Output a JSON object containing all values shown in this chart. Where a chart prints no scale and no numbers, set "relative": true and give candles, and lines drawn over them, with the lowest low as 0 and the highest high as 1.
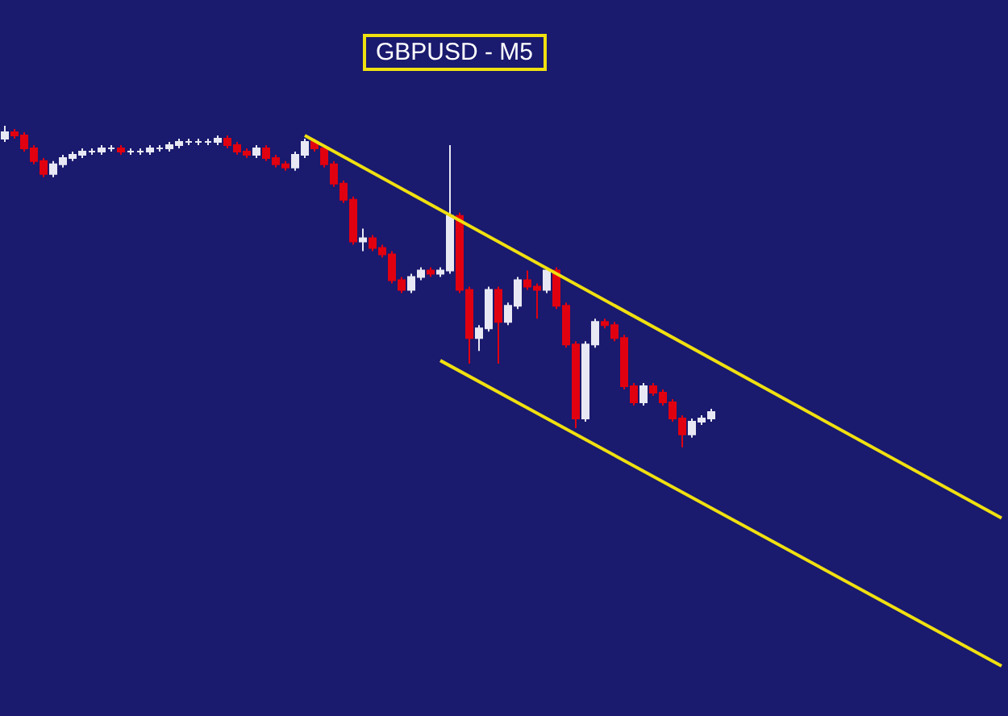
{
  "chart_data": {
    "type": "candlestick",
    "title": "GBPUSD - M5",
    "relative": true,
    "categories": [
      null,
      null,
      null,
      null,
      null,
      null,
      null,
      null,
      null,
      null,
      null,
      null,
      null,
      null,
      null,
      null,
      null,
      null,
      null,
      null,
      null,
      null,
      null,
      null,
      null,
      null,
      null,
      null,
      null,
      null,
      null,
      null,
      null,
      null,
      null,
      null,
      null,
      null,
      null,
      null,
      null,
      null,
      null,
      null,
      null,
      null,
      null,
      null,
      null,
      null,
      null,
      null,
      null,
      null,
      null,
      null,
      null,
      null,
      null,
      null,
      null,
      null,
      null,
      null,
      null,
      null,
      null,
      null,
      null,
      null,
      null,
      null,
      null,
      null,
      null,
      null,
      null,
      null,
      null,
      null,
      null,
      null,
      null,
      null,
      null,
      null,
      null,
      null,
      null,
      null,
      null,
      null,
      null,
      null,
      null,
      null,
      null,
      null,
      null,
      null,
      null,
      null,
      null,
      null
    ],
    "ohlc": [
      [
        0.96,
        1.0,
        0.95,
        0.98
      ],
      [
        0.98,
        0.99,
        0.96,
        0.97
      ],
      [
        0.97,
        0.98,
        0.92,
        0.93
      ],
      [
        0.93,
        0.94,
        0.88,
        0.89
      ],
      [
        0.89,
        0.9,
        0.84,
        0.85
      ],
      [
        0.85,
        0.89,
        0.84,
        0.88
      ],
      [
        0.88,
        0.91,
        0.87,
        0.9
      ],
      [
        0.9,
        0.92,
        0.89,
        0.91
      ],
      [
        0.91,
        0.93,
        0.9,
        0.92
      ],
      [
        0.92,
        0.93,
        0.91,
        0.92
      ],
      [
        0.92,
        0.94,
        0.91,
        0.93
      ],
      [
        0.93,
        0.94,
        0.92,
        0.93
      ],
      [
        0.93,
        0.94,
        0.91,
        0.92
      ],
      [
        0.92,
        0.93,
        0.91,
        0.92
      ],
      [
        0.92,
        0.93,
        0.91,
        0.92
      ],
      [
        0.92,
        0.94,
        0.91,
        0.93
      ],
      [
        0.93,
        0.94,
        0.92,
        0.93
      ],
      [
        0.93,
        0.95,
        0.92,
        0.94
      ],
      [
        0.94,
        0.96,
        0.93,
        0.95
      ],
      [
        0.95,
        0.96,
        0.94,
        0.95
      ],
      [
        0.95,
        0.96,
        0.94,
        0.95
      ],
      [
        0.95,
        0.96,
        0.94,
        0.95
      ],
      [
        0.95,
        0.97,
        0.94,
        0.96
      ],
      [
        0.96,
        0.97,
        0.93,
        0.94
      ],
      [
        0.94,
        0.95,
        0.91,
        0.92
      ],
      [
        0.92,
        0.93,
        0.9,
        0.91
      ],
      [
        0.91,
        0.94,
        0.9,
        0.93
      ],
      [
        0.93,
        0.94,
        0.89,
        0.9
      ],
      [
        0.9,
        0.91,
        0.87,
        0.88
      ],
      [
        0.88,
        0.89,
        0.86,
        0.87
      ],
      [
        0.87,
        0.92,
        0.86,
        0.91
      ],
      [
        0.91,
        0.96,
        0.9,
        0.95
      ],
      [
        0.95,
        0.96,
        0.92,
        0.93
      ],
      [
        0.93,
        0.94,
        0.87,
        0.88
      ],
      [
        0.88,
        0.89,
        0.81,
        0.82
      ],
      [
        0.82,
        0.83,
        0.76,
        0.77
      ],
      [
        0.77,
        0.78,
        0.63,
        0.64
      ],
      [
        0.64,
        0.68,
        0.61,
        0.65
      ],
      [
        0.65,
        0.66,
        0.61,
        0.62
      ],
      [
        0.62,
        0.63,
        0.59,
        0.6
      ],
      [
        0.6,
        0.61,
        0.51,
        0.52
      ],
      [
        0.52,
        0.53,
        0.48,
        0.49
      ],
      [
        0.49,
        0.54,
        0.48,
        0.53
      ],
      [
        0.53,
        0.56,
        0.52,
        0.55
      ],
      [
        0.55,
        0.56,
        0.53,
        0.54
      ],
      [
        0.54,
        0.56,
        0.53,
        0.55
      ],
      [
        0.55,
        0.94,
        0.54,
        0.72
      ],
      [
        0.72,
        0.73,
        0.48,
        0.49
      ],
      [
        0.49,
        0.5,
        0.26,
        0.34
      ],
      [
        0.34,
        0.38,
        0.3,
        0.37
      ],
      [
        0.37,
        0.5,
        0.36,
        0.49
      ],
      [
        0.49,
        0.5,
        0.26,
        0.39
      ],
      [
        0.39,
        0.45,
        0.38,
        0.44
      ],
      [
        0.44,
        0.53,
        0.43,
        0.52
      ],
      [
        0.52,
        0.55,
        0.49,
        0.5
      ],
      [
        0.5,
        0.51,
        0.4,
        0.49
      ],
      [
        0.49,
        0.56,
        0.48,
        0.55
      ],
      [
        0.55,
        0.56,
        0.43,
        0.44
      ],
      [
        0.44,
        0.45,
        0.31,
        0.32
      ],
      [
        0.32,
        0.33,
        0.06,
        0.09
      ],
      [
        0.09,
        0.33,
        0.08,
        0.32
      ],
      [
        0.32,
        0.4,
        0.31,
        0.39
      ],
      [
        0.39,
        0.4,
        0.37,
        0.38
      ],
      [
        0.38,
        0.39,
        0.33,
        0.34
      ],
      [
        0.34,
        0.35,
        0.18,
        0.19
      ],
      [
        0.19,
        0.2,
        0.13,
        0.14
      ],
      [
        0.14,
        0.2,
        0.13,
        0.19
      ],
      [
        0.19,
        0.2,
        0.16,
        0.17
      ],
      [
        0.17,
        0.18,
        0.13,
        0.14
      ],
      [
        0.14,
        0.15,
        0.08,
        0.09
      ],
      [
        0.09,
        0.1,
        0.0,
        0.04
      ],
      [
        0.04,
        0.09,
        0.03,
        0.08
      ],
      [
        0.08,
        0.1,
        0.07,
        0.09
      ],
      [
        0.09,
        0.12,
        0.08,
        0.11
      ],
      null,
      null,
      null,
      null,
      null,
      null,
      null,
      null,
      null,
      null,
      null,
      null,
      null,
      null,
      null,
      null,
      null,
      null,
      null,
      null,
      null,
      null,
      null,
      null,
      null,
      null,
      null,
      null,
      null,
      null
    ],
    "series": [
      {
        "type": "line",
        "color": "#f0e010",
        "values": [
          null,
          null,
          null,
          null,
          null,
          null,
          null,
          null,
          null,
          null,
          null,
          null,
          null,
          null,
          null,
          null,
          null,
          null,
          null,
          null,
          null,
          null,
          null,
          null,
          null,
          null,
          null,
          null,
          null,
          null,
          null,
          0.97,
          null,
          null,
          null,
          null,
          null,
          null,
          null,
          null,
          null,
          null,
          null,
          null,
          null,
          null,
          null,
          null,
          null,
          null,
          null,
          null,
          null,
          null,
          null,
          null,
          null,
          null,
          null,
          null,
          null,
          null,
          null,
          null,
          null,
          null,
          null,
          null,
          null,
          null,
          null,
          null,
          null,
          null,
          null,
          null,
          null,
          null,
          null,
          null,
          null,
          null,
          null,
          null,
          null,
          null,
          null,
          null,
          null,
          null,
          null,
          null,
          null,
          null,
          null,
          null,
          null,
          null,
          null,
          null,
          null,
          null,
          null,
          -0.22
        ]
      },
      {
        "type": "line",
        "color": "#f0e010",
        "values": [
          null,
          null,
          null,
          null,
          null,
          null,
          null,
          null,
          null,
          null,
          null,
          null,
          null,
          null,
          null,
          null,
          null,
          null,
          null,
          null,
          null,
          null,
          null,
          null,
          null,
          null,
          null,
          null,
          null,
          null,
          null,
          null,
          null,
          null,
          null,
          null,
          null,
          null,
          null,
          null,
          null,
          null,
          null,
          null,
          null,
          0.27,
          null,
          null,
          null,
          null,
          null,
          null,
          null,
          null,
          null,
          null,
          null,
          null,
          null,
          null,
          null,
          null,
          null,
          null,
          null,
          null,
          null,
          null,
          null,
          null,
          null,
          null,
          null,
          null,
          null,
          null,
          null,
          null,
          null,
          null,
          null,
          null,
          null,
          null,
          null,
          null,
          null,
          null,
          null,
          null,
          null,
          null,
          null,
          null,
          null,
          null,
          null,
          null,
          null,
          null,
          null,
          null,
          null,
          -0.68
        ]
      }
    ]
  }
}
